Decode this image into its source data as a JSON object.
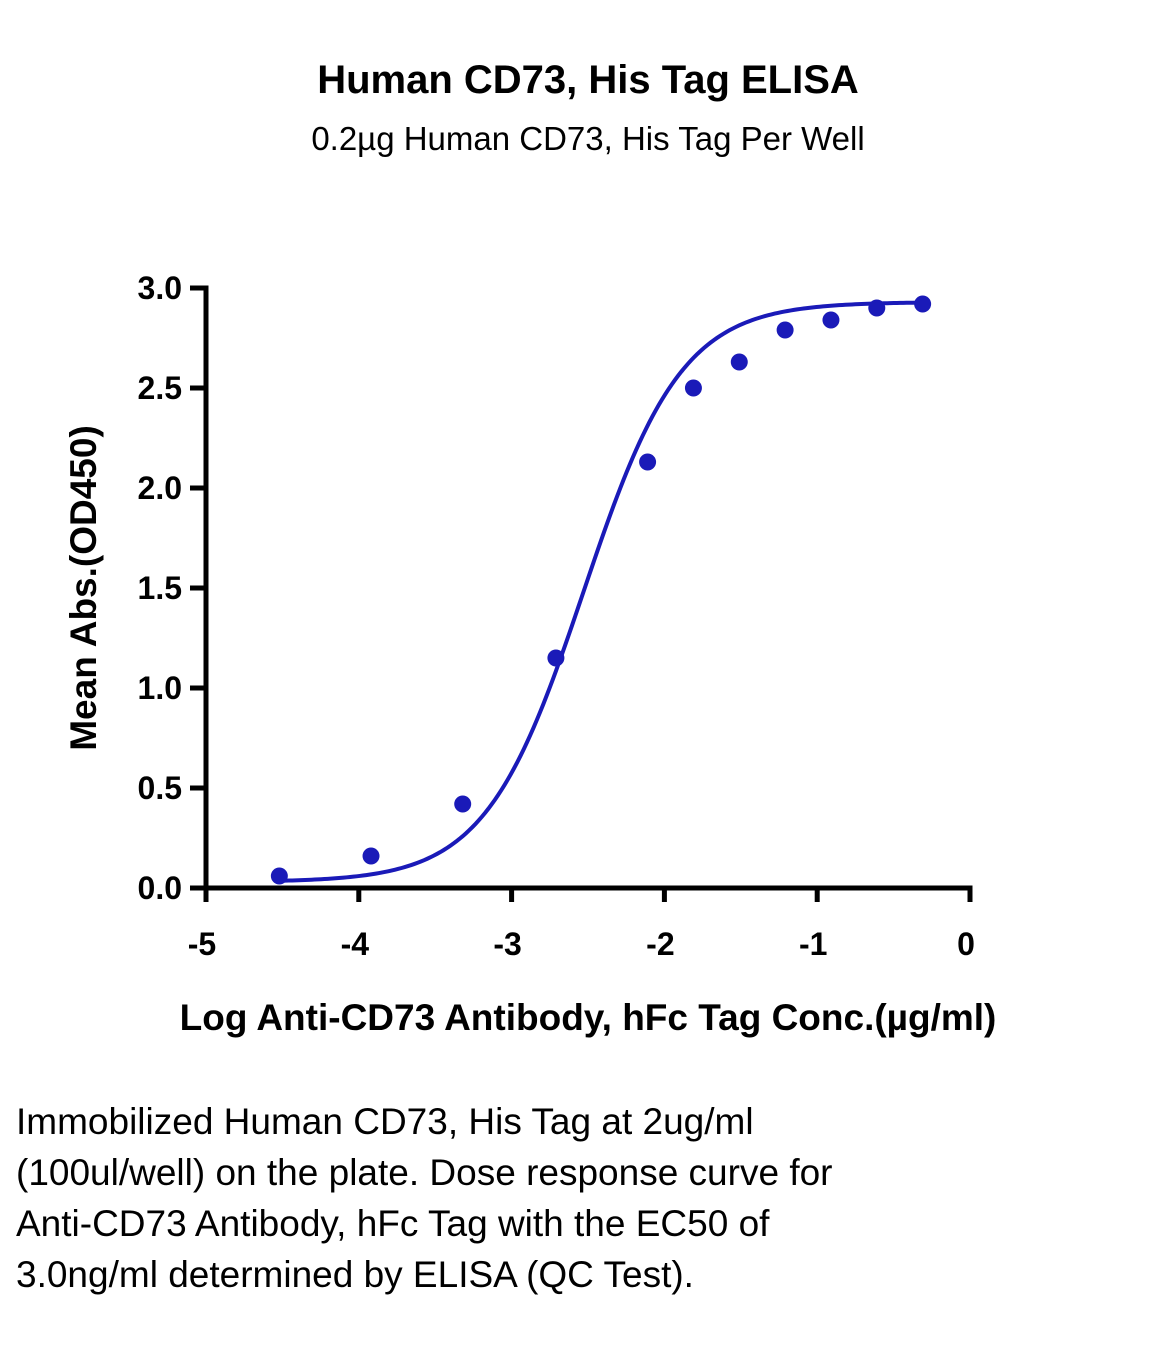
{
  "chart_data": {
    "type": "scatter",
    "title": "Human CD73, His Tag ELISA",
    "subtitle": "0.2µg Human CD73, His Tag Per Well",
    "xlabel": "Log Anti-CD73 Antibody, hFc Tag Conc.(µg/ml)",
    "ylabel": "Mean Abs.(OD450)",
    "xlim": [
      -5,
      0
    ],
    "ylim": [
      0,
      3.0
    ],
    "x_ticks": [
      "-5",
      "-4",
      "-3",
      "-2",
      "-1",
      "0"
    ],
    "y_ticks": [
      "0.0",
      "0.5",
      "1.0",
      "1.5",
      "2.0",
      "2.5",
      "3.0"
    ],
    "grid": false,
    "colors": {
      "series": "#1a1ab8",
      "axis": "#000000"
    },
    "series": [
      {
        "points": [
          {
            "x": -4.52,
            "y": 0.06
          },
          {
            "x": -3.92,
            "y": 0.16
          },
          {
            "x": -3.32,
            "y": 0.42
          },
          {
            "x": -2.71,
            "y": 1.15
          },
          {
            "x": -2.11,
            "y": 2.13
          },
          {
            "x": -1.81,
            "y": 2.5
          },
          {
            "x": -1.51,
            "y": 2.63
          },
          {
            "x": -1.21,
            "y": 2.79
          },
          {
            "x": -0.91,
            "y": 2.84
          },
          {
            "x": -0.61,
            "y": 2.9
          },
          {
            "x": -0.31,
            "y": 2.92
          }
        ],
        "fit": {
          "model": "4PL",
          "bottom": 0.03,
          "top": 2.93,
          "logEC50": -2.53,
          "hill": 1.35
        }
      }
    ]
  },
  "caption": "Immobilized Human CD73, His Tag at 2ug/ml (100ul/well) on the plate. Dose response curve for Anti-CD73 Antibody, hFc Tag with the EC50 of 3.0ng/ml determined by ELISA (QC Test)."
}
